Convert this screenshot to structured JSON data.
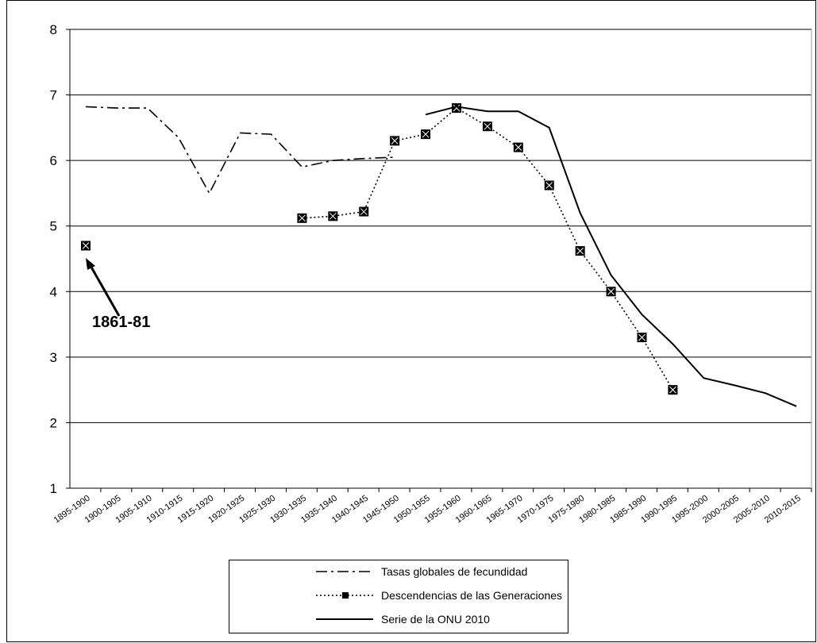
{
  "chart_data": {
    "type": "line",
    "categories": [
      "1895-1900",
      "1900-1905",
      "1905-1910",
      "1910-1915",
      "1915-1920",
      "1920-1925",
      "1925-1930",
      "1930-1935",
      "1935-1940",
      "1940-1945",
      "1945-1950",
      "1950-1955",
      "1955-1960",
      "1960-1965",
      "1965-1970",
      "1970-1975",
      "1975-1980",
      "1980-1985",
      "1985-1990",
      "1990-1995",
      "1995-2000",
      "2000-2005",
      "2005-2010",
      "2010-2015"
    ],
    "series": [
      {
        "name": "Tasas globales de fecundidad",
        "color": "#000000",
        "style": "dash-dot",
        "values": [
          6.82,
          6.8,
          6.8,
          6.35,
          5.5,
          6.42,
          6.4,
          5.9,
          6.0,
          6.03,
          6.05,
          null,
          null,
          null,
          null,
          null,
          null,
          null,
          null,
          null,
          null,
          null,
          null,
          null
        ]
      },
      {
        "name": "Descendencias de las Generaciones",
        "color": "#000000",
        "style": "dotted",
        "markers": true,
        "values": [
          4.7,
          null,
          null,
          null,
          null,
          null,
          null,
          5.12,
          5.15,
          5.22,
          6.3,
          6.4,
          6.8,
          6.52,
          6.2,
          5.62,
          4.62,
          4.0,
          3.3,
          2.5,
          null,
          null,
          null,
          null
        ]
      },
      {
        "name": "Serie de la ONU 2010",
        "color": "#000000",
        "style": "solid",
        "values": [
          null,
          null,
          null,
          null,
          null,
          null,
          null,
          null,
          null,
          null,
          null,
          6.7,
          6.82,
          6.75,
          6.75,
          6.5,
          5.2,
          4.25,
          3.65,
          3.2,
          2.68,
          2.57,
          2.45,
          2.25
        ]
      }
    ],
    "ylim": [
      1,
      8
    ],
    "yticks": [
      1,
      2,
      3,
      4,
      5,
      6,
      7,
      8
    ],
    "grid": true,
    "annotations": [
      "1861-81"
    ],
    "legend": "bottom"
  }
}
